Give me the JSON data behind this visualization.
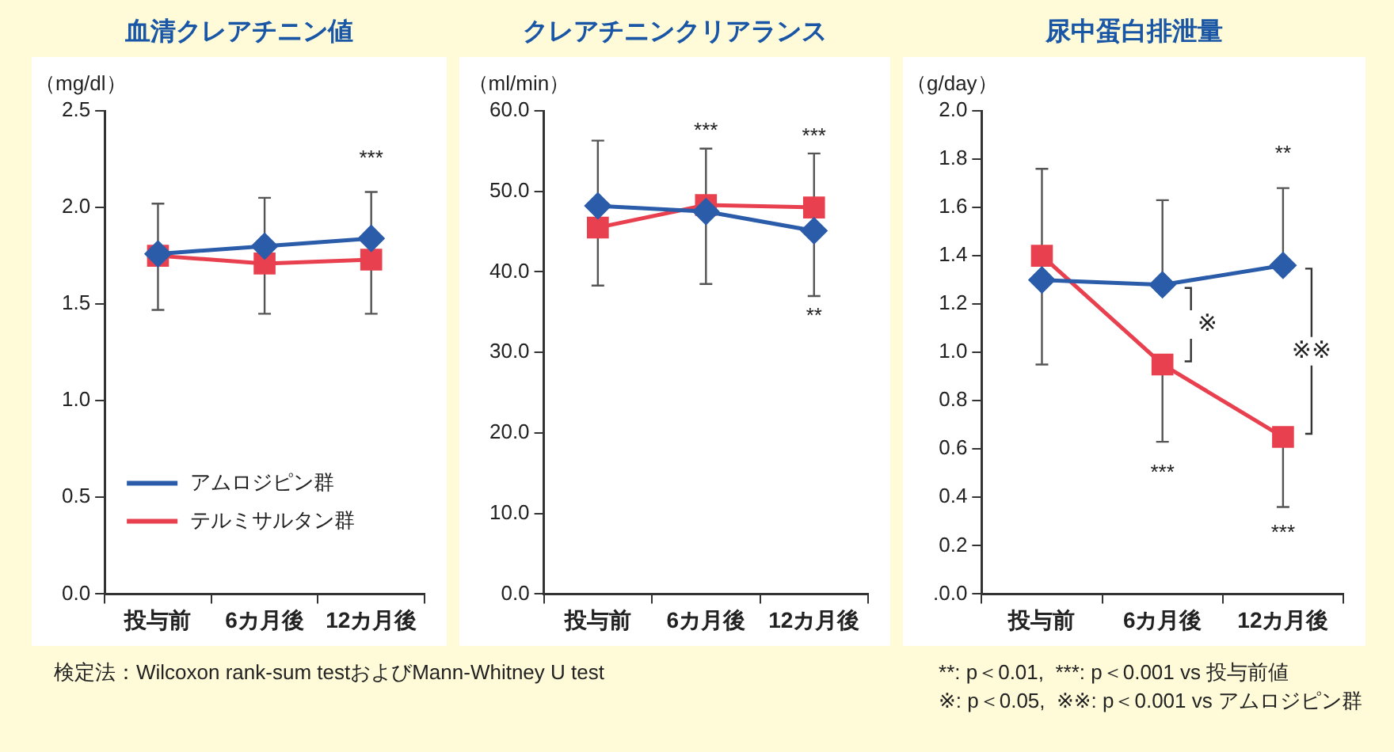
{
  "chart_data": [
    {
      "type": "line",
      "title": "血清クレアチニン値",
      "ylabel": "（mg/dl）",
      "categories": [
        "投与前",
        "6カ月後",
        "12カ月後"
      ],
      "ylim": [
        0,
        2.5
      ],
      "yticks": [
        {
          "value": 0,
          "label": "0.0"
        },
        {
          "value": 0.5,
          "label": "0.5"
        },
        {
          "value": 1,
          "label": "1.0"
        },
        {
          "value": 1.5,
          "label": "1.5"
        },
        {
          "value": 2,
          "label": "2.0"
        },
        {
          "value": 2.5,
          "label": "2.5"
        }
      ],
      "legend": "bottom left",
      "series": [
        {
          "name": "アムロジピン群",
          "color": "#2a5caa",
          "marker": "diamond",
          "values": [
            1.76,
            1.8,
            1.84
          ],
          "errors": [
            [
              1.76,
              2.02
            ],
            [
              1.8,
              2.05
            ],
            [
              1.84,
              2.08
            ]
          ]
        },
        {
          "name": "テルミサルタン群",
          "color": "#e8404f",
          "marker": "square",
          "values": [
            1.75,
            1.71,
            1.73
          ],
          "errors": [
            [
              1.47,
              1.75
            ],
            [
              1.45,
              1.71
            ],
            [
              1.45,
              1.73
            ]
          ]
        }
      ],
      "annotations": [
        "***",
        "検定法：Wilcoxon rank-sum testおよびMann-Whitney U test"
      ]
    },
    {
      "type": "line",
      "title": "クレアチニンクリアランス",
      "ylabel": "（ml/min）",
      "categories": [
        "投与前",
        "6カ月後",
        "12カ月後"
      ],
      "ylim": [
        0,
        60
      ],
      "yticks": [
        {
          "value": 0,
          "label": "0.0"
        },
        {
          "value": 10,
          "label": "10.0"
        },
        {
          "value": 20,
          "label": "20.0"
        },
        {
          "value": 30,
          "label": "30.0"
        },
        {
          "value": 40,
          "label": "40.0"
        },
        {
          "value": 50,
          "label": "50.0"
        },
        {
          "value": 60,
          "label": "60.0"
        }
      ],
      "series": [
        {
          "color": "#2a5caa",
          "marker": "diamond",
          "values": [
            48.2,
            47.5,
            45.1
          ],
          "errors": [
            [
              48.2,
              56.3
            ],
            [
              38.5,
              47.5
            ],
            [
              37.0,
              45.1
            ]
          ]
        },
        {
          "color": "#e8404f",
          "marker": "square",
          "values": [
            45.5,
            48.3,
            48.0
          ],
          "errors": [
            [
              38.3,
              45.5
            ],
            [
              48.3,
              55.3
            ],
            [
              48.0,
              54.7
            ]
          ]
        }
      ],
      "annotations": [
        "***",
        "***",
        "**"
      ]
    },
    {
      "type": "line",
      "title": "尿中蛋白排泄量",
      "ylabel": "（g/day）",
      "categories": [
        "投与前",
        "6カ月後",
        "12カ月後"
      ],
      "ylim": [
        0,
        2.0
      ],
      "yticks": [
        {
          "value": 0,
          "label": ".0.0"
        },
        {
          "value": 0.2,
          "label": "0.2"
        },
        {
          "value": 0.4,
          "label": "0.4"
        },
        {
          "value": 0.6,
          "label": "0.6"
        },
        {
          "value": 0.8,
          "label": "0.8"
        },
        {
          "value": 1.0,
          "label": "1.0"
        },
        {
          "value": 1.2,
          "label": "1.2"
        },
        {
          "value": 1.4,
          "label": "1.4"
        },
        {
          "value": 1.6,
          "label": "1.6"
        },
        {
          "value": 1.8,
          "label": "1.8"
        },
        {
          "value": 2.0,
          "label": "2.0"
        }
      ],
      "series": [
        {
          "color": "#2a5caa",
          "marker": "diamond",
          "values": [
            1.3,
            1.28,
            1.36
          ],
          "errors": [
            [
              0.95,
              1.3
            ],
            [
              1.28,
              1.63
            ],
            [
              1.36,
              1.68
            ]
          ]
        },
        {
          "color": "#e8404f",
          "marker": "square",
          "values": [
            1.4,
            0.95,
            0.65
          ],
          "errors": [
            [
              1.4,
              1.76
            ],
            [
              0.63,
              0.95
            ],
            [
              0.36,
              0.65
            ]
          ]
        }
      ],
      "annotations": [
        "**",
        "***",
        "***",
        "※",
        "※※",
        "**: p＜0.01,  ***: p＜0.001 vs 投与前値",
        "※: p＜0.05,  ※※: p＜0.001 vs アムロジピン群"
      ]
    }
  ]
}
